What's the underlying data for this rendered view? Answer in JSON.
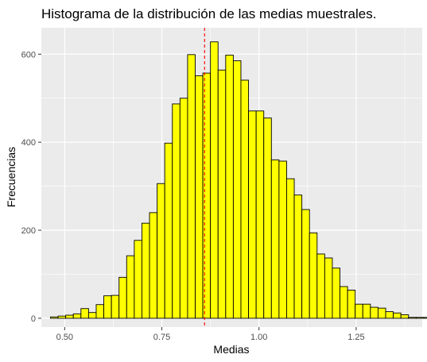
{
  "chart_data": {
    "type": "bar",
    "title": "Histograma de la distribución de las medias muestrales.",
    "xlabel": "Medias",
    "ylabel": "Frecuencias",
    "xlim": [
      0.44,
      1.42
    ],
    "ylim": [
      -20,
      660
    ],
    "x_ticks": [
      0.5,
      0.75,
      1.0,
      1.25
    ],
    "x_tick_labels": [
      "0.50",
      "0.75",
      "1.00",
      "1.25"
    ],
    "y_ticks": [
      0,
      200,
      400,
      600
    ],
    "y_tick_labels": [
      "0",
      "200",
      "400",
      "600"
    ],
    "grid": true,
    "bin_width": 0.0196,
    "bins_start": 0.4635,
    "counts": [
      3,
      5,
      7,
      10,
      22,
      13,
      31,
      51,
      52,
      93,
      142,
      177,
      216,
      240,
      306,
      398,
      487,
      500,
      599,
      551,
      557,
      628,
      564,
      598,
      585,
      541,
      471,
      471,
      455,
      360,
      357,
      317,
      280,
      247,
      194,
      146,
      137,
      114,
      72,
      64,
      32,
      32,
      25,
      23,
      15,
      12,
      8,
      2,
      2,
      2,
      1,
      1,
      2,
      0,
      0,
      0,
      2
    ],
    "mean_line": 0.86,
    "bar_fill": "#ffff00",
    "bar_stroke": "#000000",
    "mean_line_color": "#ff0000",
    "panel_background": "#ebebeb",
    "grid_color": "#ffffff"
  }
}
